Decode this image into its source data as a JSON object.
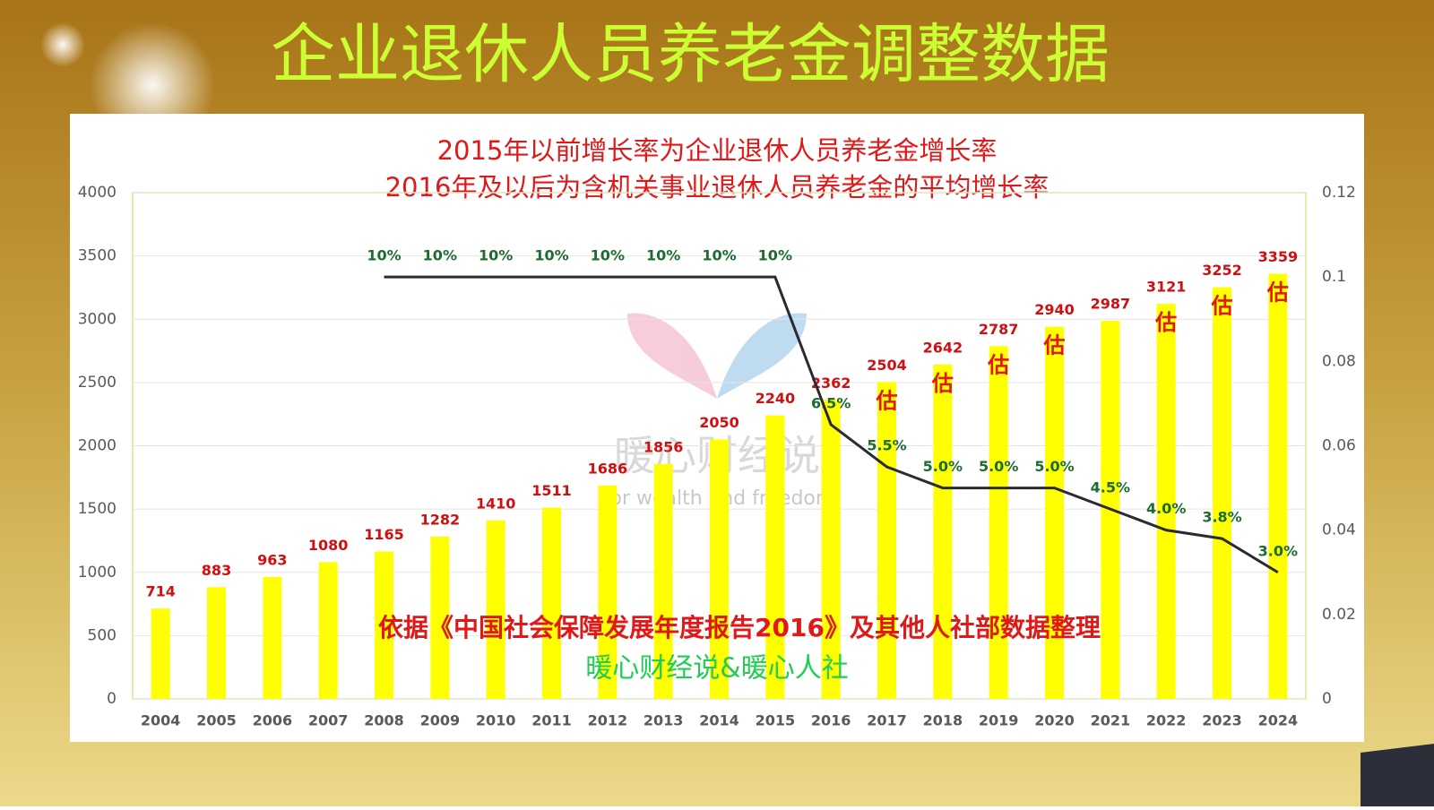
{
  "chart_data": {
    "type": "bar",
    "title": "企业退休人员养老金调整数据",
    "subtitle": [
      "2015年以前增长率为企业退休人员养老金增长率",
      "2016年及以后为含机关事业退休人员养老金的平均增长率"
    ],
    "categories": [
      "2004",
      "2005",
      "2006",
      "2007",
      "2008",
      "2009",
      "2010",
      "2011",
      "2012",
      "2013",
      "2014",
      "2015",
      "2016",
      "2017",
      "2018",
      "2019",
      "2020",
      "2021",
      "2022",
      "2023",
      "2024"
    ],
    "series": [
      {
        "type": "bar",
        "color": "#ffff00",
        "values": [
          714,
          883,
          963,
          1080,
          1165,
          1282,
          1410,
          1511,
          1686,
          1856,
          2050,
          2240,
          2362,
          2504,
          2642,
          2787,
          2940,
          2987,
          3121,
          3252,
          3359
        ],
        "notes": [
          null,
          null,
          null,
          null,
          null,
          null,
          null,
          null,
          null,
          null,
          null,
          null,
          null,
          "估",
          "估",
          "估",
          "估",
          null,
          "估",
          "估",
          "估"
        ]
      },
      {
        "type": "line",
        "axis": "y2",
        "color": "#2a2a33",
        "values": [
          null,
          null,
          null,
          null,
          0.1,
          0.1,
          0.1,
          0.1,
          0.1,
          0.1,
          0.1,
          0.1,
          0.065,
          0.055,
          0.05,
          0.05,
          0.05,
          0.045,
          0.04,
          0.038,
          0.03
        ],
        "value_labels": [
          null,
          null,
          null,
          null,
          "10%",
          "10%",
          "10%",
          "10%",
          "10%",
          "10%",
          "10%",
          "10%",
          "6.5%",
          "5.5%",
          "5.0%",
          "5.0%",
          "5.0%",
          "4.5%",
          "4.0%",
          "3.8%",
          "3.0%"
        ]
      }
    ],
    "ylim": [
      0,
      4000
    ],
    "yticks": [
      0,
      500,
      1000,
      1500,
      2000,
      2500,
      3000,
      3500,
      4000
    ],
    "y2lim": [
      0,
      0.12
    ],
    "y2ticks": [
      0,
      0.02,
      0.04,
      0.06,
      0.08,
      0.1,
      0.12
    ],
    "annotations": [
      "依据《中国社会保障发展年度报告2016》及其他人社部数据整理",
      "暖心财经说&暖心人社"
    ],
    "watermark": [
      "暖心财经说",
      "For wealth and freedom"
    ]
  }
}
